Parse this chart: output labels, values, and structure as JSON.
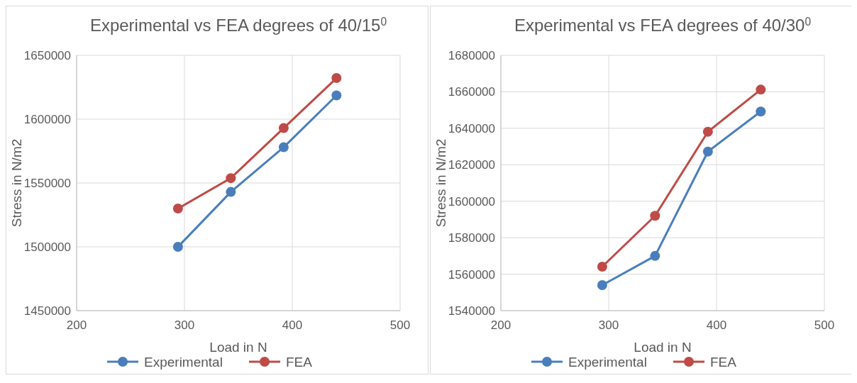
{
  "chart_data": [
    {
      "type": "line",
      "title": "Experimental vs FEA degrees of 40/15$^{0}$",
      "xlabel": "Load in N",
      "ylabel": "Stress in N/m2",
      "xlim": [
        200,
        500
      ],
      "xticks": [
        200,
        300,
        400,
        500
      ],
      "ylim": [
        1450000,
        1650000
      ],
      "yticks": [
        1450000,
        1500000,
        1550000,
        1600000,
        1650000
      ],
      "grid": true,
      "legend": "bottom",
      "marker": "circle",
      "line_style": "solid",
      "series": [
        {
          "name": "Experimental",
          "color": "#4a7ebb",
          "x": [
            294,
            343,
            392,
            441
          ],
          "values": [
            1500000,
            1543000,
            1578000,
            1618600
          ]
        },
        {
          "name": "FEA",
          "color": "#be4b48",
          "x": [
            294,
            343,
            392,
            441
          ],
          "values": [
            1530000,
            1553800,
            1593000,
            1632200
          ]
        }
      ]
    },
    {
      "type": "line",
      "title": "Experimental vs FEA degrees of 40/30$^{0}$",
      "xlabel": "Load in N",
      "ylabel": "Stress in N/m2",
      "xlim": [
        200,
        500
      ],
      "xticks": [
        200,
        300,
        400,
        500
      ],
      "ylim": [
        1540000,
        1680000
      ],
      "yticks": [
        1540000,
        1560000,
        1580000,
        1600000,
        1620000,
        1640000,
        1660000,
        1680000
      ],
      "grid": true,
      "legend": "bottom",
      "marker": "circle",
      "line_style": "solid",
      "series": [
        {
          "name": "Experimental",
          "color": "#4a7ebb",
          "x": [
            294,
            343,
            392,
            441
          ],
          "values": [
            1554000,
            1570000,
            1627200,
            1649200
          ]
        },
        {
          "name": "FEA",
          "color": "#be4b48",
          "x": [
            294,
            343,
            392,
            441
          ],
          "values": [
            1564100,
            1592000,
            1638100,
            1661200
          ]
        }
      ]
    }
  ]
}
